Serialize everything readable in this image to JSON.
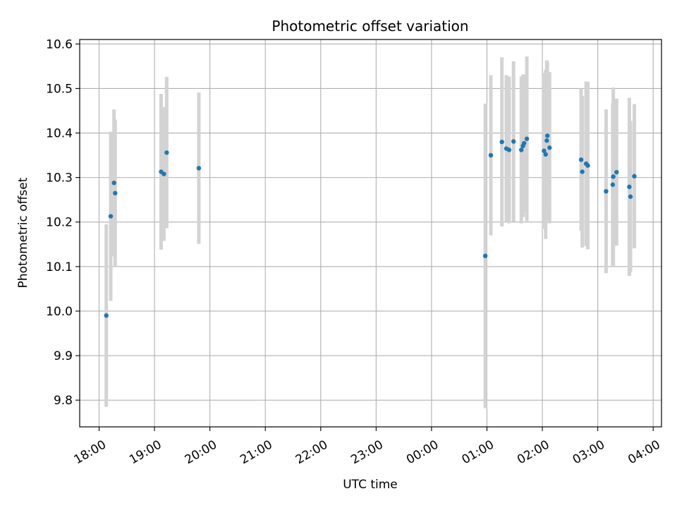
{
  "chart_data": {
    "type": "scatter",
    "title": "Photometric offset variation",
    "xlabel": "UTC time",
    "ylabel": "Photometric offset",
    "x_unit": "hours since 18:00 UTC",
    "xlim": [
      -0.35,
      10.15
    ],
    "ylim": [
      9.74,
      10.61
    ],
    "x_ticks": [
      {
        "value": 0,
        "label": "18:00"
      },
      {
        "value": 1,
        "label": "19:00"
      },
      {
        "value": 2,
        "label": "20:00"
      },
      {
        "value": 3,
        "label": "21:00"
      },
      {
        "value": 4,
        "label": "22:00"
      },
      {
        "value": 5,
        "label": "23:00"
      },
      {
        "value": 6,
        "label": "00:00"
      },
      {
        "value": 7,
        "label": "01:00"
      },
      {
        "value": 8,
        "label": "02:00"
      },
      {
        "value": 9,
        "label": "03:00"
      },
      {
        "value": 10,
        "label": "04:00"
      }
    ],
    "y_ticks": [
      {
        "value": 9.8,
        "label": "9.8"
      },
      {
        "value": 9.9,
        "label": "9.9"
      },
      {
        "value": 10.0,
        "label": "10.0"
      },
      {
        "value": 10.1,
        "label": "10.1"
      },
      {
        "value": 10.2,
        "label": "10.2"
      },
      {
        "value": 10.3,
        "label": "10.3"
      },
      {
        "value": 10.4,
        "label": "10.4"
      },
      {
        "value": 10.5,
        "label": "10.5"
      },
      {
        "value": 10.6,
        "label": "10.6"
      }
    ],
    "grid": true,
    "marker_color": "#1f77b4",
    "errorbar_color": "#d3d3d3",
    "points": [
      {
        "x": 0.13,
        "y": 9.99,
        "err": 0.205
      },
      {
        "x": 0.21,
        "y": 10.213,
        "err": 0.19
      },
      {
        "x": 0.27,
        "y": 10.288,
        "err": 0.165
      },
      {
        "x": 0.29,
        "y": 10.265,
        "err": 0.165
      },
      {
        "x": 1.12,
        "y": 10.313,
        "err": 0.175
      },
      {
        "x": 1.17,
        "y": 10.308,
        "err": 0.15
      },
      {
        "x": 1.22,
        "y": 10.356,
        "err": 0.17
      },
      {
        "x": 1.8,
        "y": 10.321,
        "err": 0.17
      },
      {
        "x": 6.97,
        "y": 10.124,
        "err": 0.342
      },
      {
        "x": 7.07,
        "y": 10.35,
        "err": 0.18
      },
      {
        "x": 7.27,
        "y": 10.38,
        "err": 0.19
      },
      {
        "x": 7.35,
        "y": 10.365,
        "err": 0.165
      },
      {
        "x": 7.4,
        "y": 10.362,
        "err": 0.165
      },
      {
        "x": 7.48,
        "y": 10.381,
        "err": 0.18
      },
      {
        "x": 7.62,
        "y": 10.362,
        "err": 0.165
      },
      {
        "x": 7.65,
        "y": 10.371,
        "err": 0.16
      },
      {
        "x": 7.67,
        "y": 10.377,
        "err": 0.155
      },
      {
        "x": 7.72,
        "y": 10.387,
        "err": 0.185
      },
      {
        "x": 8.03,
        "y": 10.36,
        "err": 0.175
      },
      {
        "x": 8.06,
        "y": 10.352,
        "err": 0.19
      },
      {
        "x": 8.08,
        "y": 10.383,
        "err": 0.18
      },
      {
        "x": 8.09,
        "y": 10.394,
        "err": 0.165
      },
      {
        "x": 8.13,
        "y": 10.367,
        "err": 0.17
      },
      {
        "x": 8.7,
        "y": 10.34,
        "err": 0.16
      },
      {
        "x": 8.72,
        "y": 10.313,
        "err": 0.17
      },
      {
        "x": 8.79,
        "y": 10.331,
        "err": 0.185
      },
      {
        "x": 8.82,
        "y": 10.327,
        "err": 0.188
      },
      {
        "x": 9.15,
        "y": 10.269,
        "err": 0.184
      },
      {
        "x": 9.27,
        "y": 10.284,
        "err": 0.182
      },
      {
        "x": 9.28,
        "y": 10.302,
        "err": 0.2
      },
      {
        "x": 9.34,
        "y": 10.312,
        "err": 0.165
      },
      {
        "x": 9.57,
        "y": 10.279,
        "err": 0.2
      },
      {
        "x": 9.59,
        "y": 10.257,
        "err": 0.17
      },
      {
        "x": 9.66,
        "y": 10.303,
        "err": 0.162
      }
    ]
  }
}
